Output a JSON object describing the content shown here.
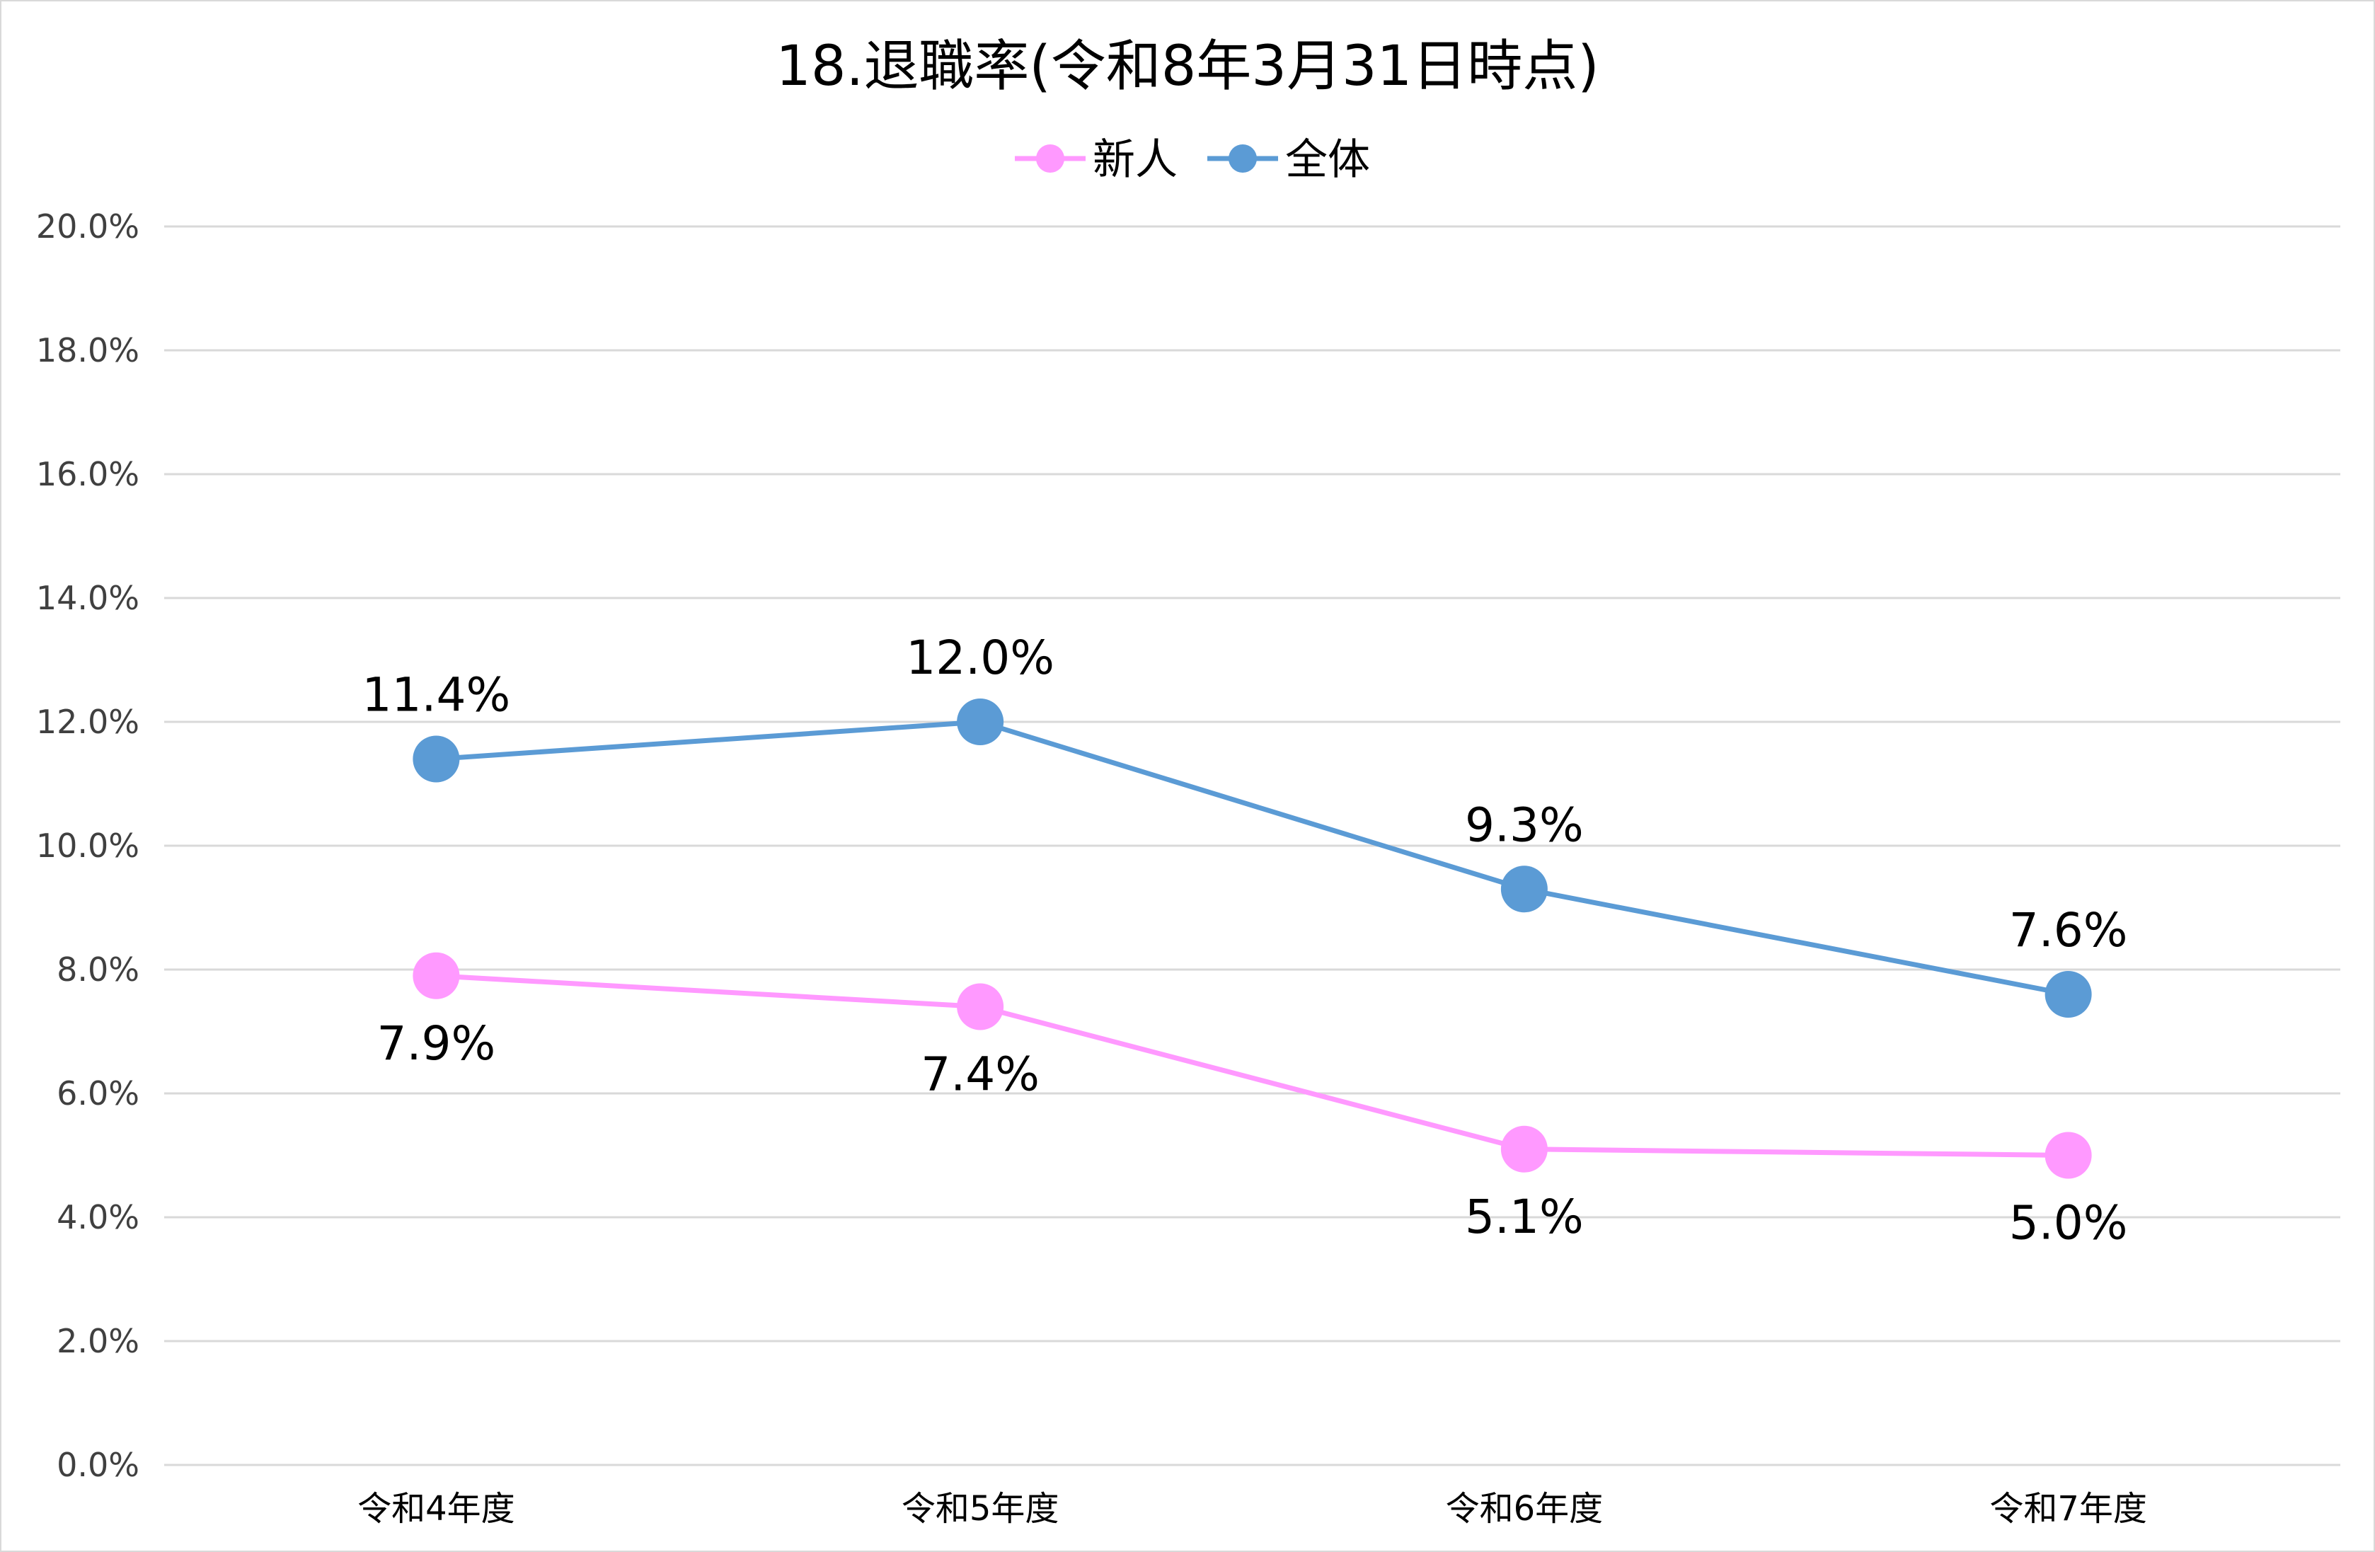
{
  "chart_data": {
    "type": "line",
    "title": "18.退職率(令和8年3月31日時点)",
    "categories": [
      "令和4年度",
      "令和5年度",
      "令和6年度",
      "令和7年度"
    ],
    "series": [
      {
        "name": "新人",
        "color": "#ff99ff",
        "values": [
          7.9,
          7.4,
          5.1,
          5.0
        ],
        "labels": [
          "7.9%",
          "7.4%",
          "5.1%",
          "5.0%"
        ],
        "label_position": "below"
      },
      {
        "name": "全体",
        "color": "#5b9bd5",
        "values": [
          11.4,
          12.0,
          9.3,
          7.6
        ],
        "labels": [
          "11.4%",
          "12.0%",
          "9.3%",
          "7.6%"
        ],
        "label_position": "above"
      }
    ],
    "ylim": [
      0,
      20
    ],
    "yticks": [
      "0.0%",
      "2.0%",
      "4.0%",
      "6.0%",
      "8.0%",
      "10.0%",
      "12.0%",
      "14.0%",
      "16.0%",
      "18.0%",
      "20.0%"
    ],
    "grid": true,
    "legend_position": "top-center"
  }
}
